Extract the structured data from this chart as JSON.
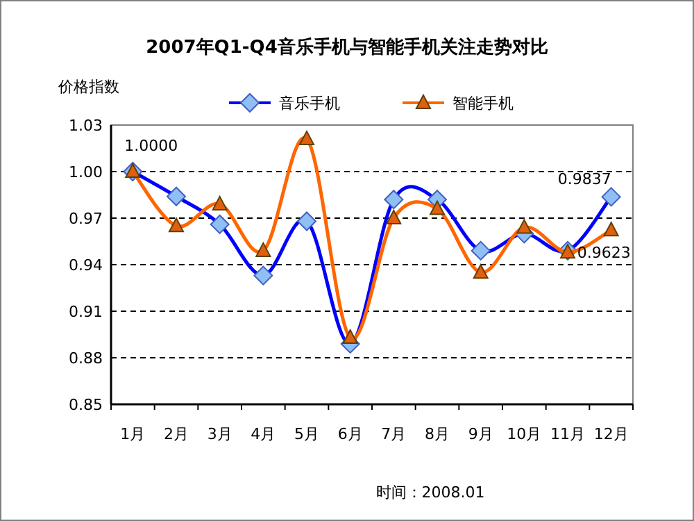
{
  "chart_data": {
    "type": "line",
    "title": "2007年Q1-Q4音乐手机与智能手机关注走势对比",
    "ylabel": "价格指数",
    "categories": [
      "1月",
      "2月",
      "3月",
      "4月",
      "5月",
      "6月",
      "7月",
      "8月",
      "9月",
      "10月",
      "11月",
      "12月"
    ],
    "series": [
      {
        "name": "音乐手机",
        "color": "#0000ff",
        "marker": "diamond",
        "values": [
          1.0,
          0.984,
          0.966,
          0.933,
          0.968,
          0.889,
          0.982,
          0.982,
          0.949,
          0.96,
          0.949,
          0.9837
        ],
        "value_labels": [
          "1.0000",
          null,
          null,
          null,
          null,
          null,
          null,
          null,
          null,
          null,
          null,
          "0.9837"
        ]
      },
      {
        "name": "智能手机",
        "color": "#ff6600",
        "marker": "triangle",
        "values": [
          1.0,
          0.965,
          0.979,
          0.949,
          1.021,
          0.893,
          0.97,
          0.976,
          0.935,
          0.964,
          0.948,
          0.9623
        ],
        "value_labels": [
          null,
          null,
          null,
          null,
          null,
          null,
          null,
          null,
          null,
          null,
          null,
          "0.9623"
        ]
      }
    ],
    "ylim": [
      0.85,
      1.03
    ],
    "yticks": [
      {
        "value": 0.85,
        "label": "0.85"
      },
      {
        "value": 0.88,
        "label": "0.88"
      },
      {
        "value": 0.91,
        "label": "0.91"
      },
      {
        "value": 0.94,
        "label": "0.94"
      },
      {
        "value": 0.97,
        "label": "0.97"
      },
      {
        "value": 1.0,
        "label": "1.00"
      },
      {
        "value": 1.03,
        "label": "1.03"
      }
    ],
    "grid": "y",
    "legend": "top",
    "line_style": "solid",
    "annotations": [
      "时间：2008.01"
    ]
  }
}
